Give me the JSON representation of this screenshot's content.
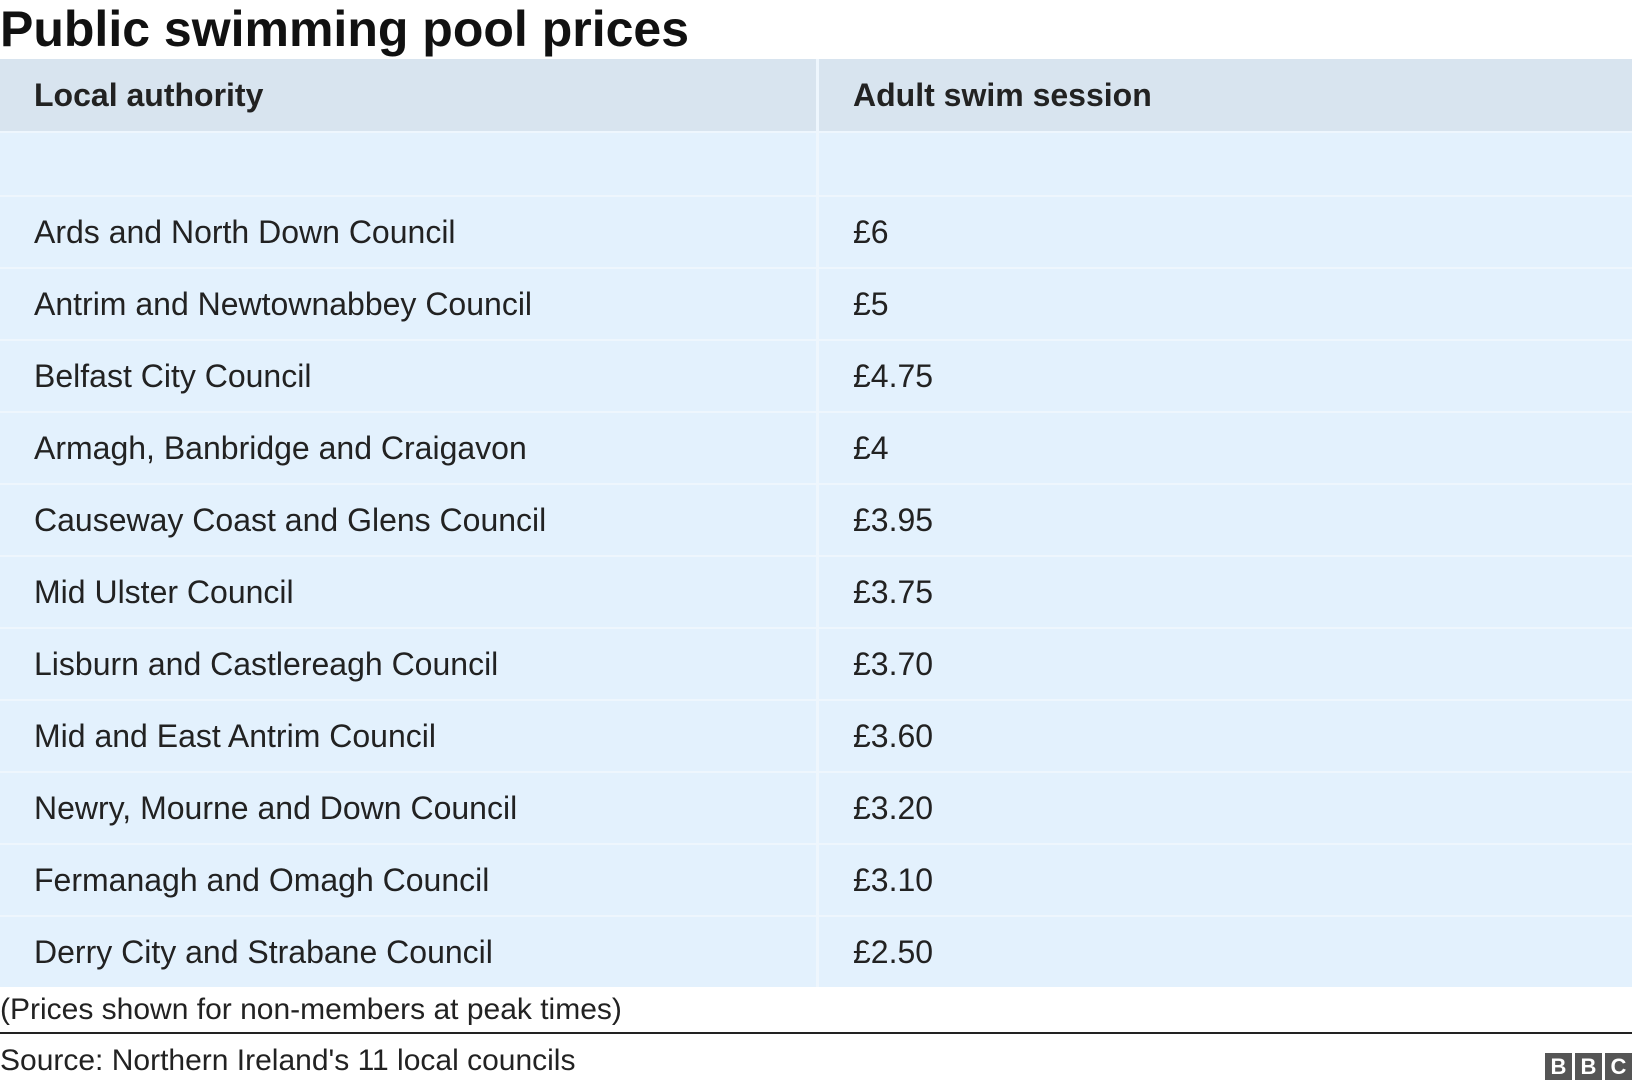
{
  "chart_data": {
    "type": "table",
    "title": "Public swimming pool prices",
    "columns": [
      "Local authority",
      "Adult swim session"
    ],
    "rows": [
      [
        "",
        ""
      ],
      [
        "Ards and North Down Council",
        "£6"
      ],
      [
        "Antrim and Newtownabbey Council",
        "£5"
      ],
      [
        "Belfast City Council",
        "£4.75"
      ],
      [
        "Armagh, Banbridge and Craigavon",
        "£4"
      ],
      [
        "Causeway Coast and Glens Council",
        "£3.95"
      ],
      [
        "Mid Ulster Council",
        "£3.75"
      ],
      [
        "Lisburn and Castlereagh Council",
        "£3.70"
      ],
      [
        "Mid and East Antrim Council",
        "£3.60"
      ],
      [
        "Newry, Mourne and Down Council",
        "£3.20"
      ],
      [
        "Fermanagh and Omagh Council",
        "£3.10"
      ],
      [
        "Derry City and Strabane Council",
        "£2.50"
      ]
    ],
    "note": "(Prices shown for non-members at peak times)",
    "source": "Source: Northern Ireland's 11 local councils",
    "logo": "BBC"
  }
}
